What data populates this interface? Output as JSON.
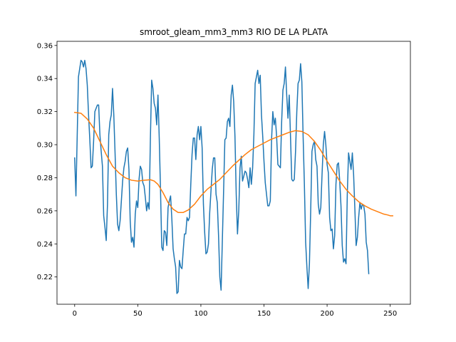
{
  "chart_data": {
    "type": "line",
    "title": "smroot_gleam_mm3_mm3 RIO DE LA PLATA",
    "xlabel": "",
    "ylabel": "",
    "xlim": [
      -14,
      266
    ],
    "ylim": [
      0.2035,
      0.3625
    ],
    "xticks": [
      0,
      50,
      100,
      150,
      200,
      250
    ],
    "xtick_labels": [
      "0",
      "50",
      "100",
      "150",
      "200",
      "250"
    ],
    "yticks": [
      0.22,
      0.24,
      0.26,
      0.28,
      0.3,
      0.32,
      0.34,
      0.36
    ],
    "ytick_labels": [
      "0.22",
      "0.24",
      "0.26",
      "0.28",
      "0.30",
      "0.32",
      "0.34",
      "0.36"
    ],
    "grid": false,
    "series": [
      {
        "color": "#1f77b4",
        "points": [
          [
            0,
            0.292
          ],
          [
            1,
            0.269
          ],
          [
            2,
            0.305
          ],
          [
            3,
            0.341
          ],
          [
            4,
            0.346
          ],
          [
            5,
            0.351
          ],
          [
            6,
            0.35
          ],
          [
            7,
            0.347
          ],
          [
            8,
            0.351
          ],
          [
            9,
            0.346
          ],
          [
            10,
            0.336
          ],
          [
            11,
            0.318
          ],
          [
            12,
            0.303
          ],
          [
            13,
            0.286
          ],
          [
            14,
            0.287
          ],
          [
            15,
            0.302
          ],
          [
            16,
            0.32
          ],
          [
            17,
            0.322
          ],
          [
            18,
            0.324
          ],
          [
            19,
            0.324
          ],
          [
            20,
            0.306
          ],
          [
            21,
            0.296
          ],
          [
            22,
            0.287
          ],
          [
            23,
            0.257
          ],
          [
            24,
            0.25
          ],
          [
            25,
            0.242
          ],
          [
            26,
            0.264
          ],
          [
            27,
            0.306
          ],
          [
            28,
            0.314
          ],
          [
            29,
            0.318
          ],
          [
            30,
            0.334
          ],
          [
            31,
            0.318
          ],
          [
            32,
            0.295
          ],
          [
            33,
            0.27
          ],
          [
            34,
            0.252
          ],
          [
            35,
            0.248
          ],
          [
            36,
            0.254
          ],
          [
            37,
            0.266
          ],
          [
            38,
            0.278
          ],
          [
            39,
            0.286
          ],
          [
            40,
            0.29
          ],
          [
            41,
            0.296
          ],
          [
            42,
            0.298
          ],
          [
            43,
            0.285
          ],
          [
            44,
            0.254
          ],
          [
            45,
            0.241
          ],
          [
            46,
            0.244
          ],
          [
            47,
            0.238
          ],
          [
            48,
            0.258
          ],
          [
            49,
            0.266
          ],
          [
            50,
            0.262
          ],
          [
            51,
            0.279
          ],
          [
            52,
            0.287
          ],
          [
            53,
            0.285
          ],
          [
            54,
            0.277
          ],
          [
            55,
            0.275
          ],
          [
            56,
            0.268
          ],
          [
            57,
            0.26
          ],
          [
            58,
            0.265
          ],
          [
            59,
            0.261
          ],
          [
            60,
            0.304
          ],
          [
            61,
            0.339
          ],
          [
            62,
            0.334
          ],
          [
            63,
            0.325
          ],
          [
            64,
            0.322
          ],
          [
            65,
            0.312
          ],
          [
            66,
            0.33
          ],
          [
            67,
            0.304
          ],
          [
            68,
            0.273
          ],
          [
            69,
            0.238
          ],
          [
            70,
            0.236
          ],
          [
            71,
            0.248
          ],
          [
            72,
            0.247
          ],
          [
            73,
            0.239
          ],
          [
            74,
            0.262
          ],
          [
            75,
            0.266
          ],
          [
            76,
            0.269
          ],
          [
            77,
            0.255
          ],
          [
            78,
            0.237
          ],
          [
            79,
            0.231
          ],
          [
            80,
            0.226
          ],
          [
            81,
            0.21
          ],
          [
            82,
            0.211
          ],
          [
            83,
            0.23
          ],
          [
            84,
            0.226
          ],
          [
            85,
            0.225
          ],
          [
            86,
            0.236
          ],
          [
            87,
            0.246
          ],
          [
            88,
            0.246
          ],
          [
            89,
            0.256
          ],
          [
            90,
            0.254
          ],
          [
            91,
            0.256
          ],
          [
            92,
            0.276
          ],
          [
            93,
            0.294
          ],
          [
            94,
            0.304
          ],
          [
            95,
            0.304
          ],
          [
            96,
            0.291
          ],
          [
            97,
            0.306
          ],
          [
            98,
            0.311
          ],
          [
            99,
            0.303
          ],
          [
            100,
            0.311
          ],
          [
            101,
            0.298
          ],
          [
            102,
            0.264
          ],
          [
            103,
            0.247
          ],
          [
            104,
            0.234
          ],
          [
            105,
            0.235
          ],
          [
            106,
            0.24
          ],
          [
            107,
            0.259
          ],
          [
            108,
            0.272
          ],
          [
            109,
            0.285
          ],
          [
            110,
            0.292
          ],
          [
            111,
            0.292
          ],
          [
            112,
            0.27
          ],
          [
            113,
            0.265
          ],
          [
            114,
            0.245
          ],
          [
            115,
            0.22
          ],
          [
            116,
            0.212
          ],
          [
            117,
            0.242
          ],
          [
            118,
            0.272
          ],
          [
            119,
            0.303
          ],
          [
            120,
            0.304
          ],
          [
            121,
            0.314
          ],
          [
            122,
            0.316
          ],
          [
            123,
            0.311
          ],
          [
            124,
            0.33
          ],
          [
            125,
            0.336
          ],
          [
            126,
            0.326
          ],
          [
            127,
            0.305
          ],
          [
            128,
            0.27
          ],
          [
            129,
            0.246
          ],
          [
            130,
            0.26
          ],
          [
            131,
            0.286
          ],
          [
            132,
            0.293
          ],
          [
            133,
            0.278
          ],
          [
            134,
            0.281
          ],
          [
            135,
            0.284
          ],
          [
            136,
            0.283
          ],
          [
            137,
            0.279
          ],
          [
            138,
            0.274
          ],
          [
            139,
            0.286
          ],
          [
            140,
            0.276
          ],
          [
            141,
            0.286
          ],
          [
            142,
            0.306
          ],
          [
            143,
            0.337
          ],
          [
            144,
            0.341
          ],
          [
            145,
            0.345
          ],
          [
            146,
            0.337
          ],
          [
            147,
            0.342
          ],
          [
            148,
            0.318
          ],
          [
            149,
            0.305
          ],
          [
            150,
            0.29
          ],
          [
            151,
            0.277
          ],
          [
            152,
            0.27
          ],
          [
            153,
            0.263
          ],
          [
            154,
            0.263
          ],
          [
            155,
            0.266
          ],
          [
            156,
            0.303
          ],
          [
            157,
            0.32
          ],
          [
            158,
            0.312
          ],
          [
            159,
            0.316
          ],
          [
            160,
            0.305
          ],
          [
            161,
            0.288
          ],
          [
            162,
            0.287
          ],
          [
            163,
            0.286
          ],
          [
            164,
            0.314
          ],
          [
            165,
            0.333
          ],
          [
            166,
            0.337
          ],
          [
            167,
            0.347
          ],
          [
            168,
            0.33
          ],
          [
            169,
            0.316
          ],
          [
            170,
            0.33
          ],
          [
            171,
            0.305
          ],
          [
            172,
            0.279
          ],
          [
            173,
            0.278
          ],
          [
            174,
            0.279
          ],
          [
            175,
            0.296
          ],
          [
            176,
            0.32
          ],
          [
            177,
            0.337
          ],
          [
            178,
            0.339
          ],
          [
            179,
            0.349
          ],
          [
            180,
            0.338
          ],
          [
            181,
            0.305
          ],
          [
            182,
            0.276
          ],
          [
            183,
            0.241
          ],
          [
            184,
            0.226
          ],
          [
            185,
            0.213
          ],
          [
            186,
            0.228
          ],
          [
            187,
            0.26
          ],
          [
            188,
            0.296
          ],
          [
            189,
            0.3
          ],
          [
            190,
            0.302
          ],
          [
            191,
            0.291
          ],
          [
            192,
            0.287
          ],
          [
            193,
            0.264
          ],
          [
            194,
            0.258
          ],
          [
            195,
            0.262
          ],
          [
            196,
            0.282
          ],
          [
            197,
            0.3
          ],
          [
            198,
            0.308
          ],
          [
            199,
            0.3
          ],
          [
            200,
            0.288
          ],
          [
            201,
            0.283
          ],
          [
            202,
            0.256
          ],
          [
            203,
            0.248
          ],
          [
            204,
            0.249
          ],
          [
            205,
            0.237
          ],
          [
            206,
            0.245
          ],
          [
            207,
            0.276
          ],
          [
            208,
            0.288
          ],
          [
            209,
            0.289
          ],
          [
            210,
            0.278
          ],
          [
            211,
            0.263
          ],
          [
            212,
            0.239
          ],
          [
            213,
            0.229
          ],
          [
            214,
            0.231
          ],
          [
            215,
            0.228
          ],
          [
            216,
            0.27
          ],
          [
            217,
            0.295
          ],
          [
            218,
            0.29
          ],
          [
            219,
            0.285
          ],
          [
            220,
            0.295
          ],
          [
            221,
            0.282
          ],
          [
            222,
            0.261
          ],
          [
            223,
            0.239
          ],
          [
            224,
            0.244
          ],
          [
            225,
            0.256
          ],
          [
            226,
            0.265
          ],
          [
            227,
            0.261
          ],
          [
            228,
            0.264
          ],
          [
            229,
            0.263
          ],
          [
            230,
            0.258
          ],
          [
            231,
            0.241
          ],
          [
            232,
            0.236
          ],
          [
            233,
            0.222
          ]
        ]
      },
      {
        "color": "#ff7f0e",
        "points": [
          [
            0,
            0.3195
          ],
          [
            5,
            0.319
          ],
          [
            10,
            0.3155
          ],
          [
            15,
            0.31
          ],
          [
            20,
            0.302
          ],
          [
            25,
            0.294
          ],
          [
            30,
            0.287
          ],
          [
            35,
            0.283
          ],
          [
            40,
            0.28
          ],
          [
            45,
            0.2785
          ],
          [
            50,
            0.278
          ],
          [
            55,
            0.2785
          ],
          [
            60,
            0.2788
          ],
          [
            63,
            0.278
          ],
          [
            66,
            0.276
          ],
          [
            70,
            0.271
          ],
          [
            74,
            0.265
          ],
          [
            78,
            0.261
          ],
          [
            82,
            0.259
          ],
          [
            86,
            0.259
          ],
          [
            90,
            0.2605
          ],
          [
            95,
            0.264
          ],
          [
            100,
            0.269
          ],
          [
            105,
            0.273
          ],
          [
            110,
            0.276
          ],
          [
            115,
            0.279
          ],
          [
            120,
            0.283
          ],
          [
            125,
            0.287
          ],
          [
            130,
            0.2905
          ],
          [
            135,
            0.294
          ],
          [
            140,
            0.297
          ],
          [
            145,
            0.299
          ],
          [
            150,
            0.301
          ],
          [
            155,
            0.303
          ],
          [
            160,
            0.3045
          ],
          [
            165,
            0.306
          ],
          [
            170,
            0.3075
          ],
          [
            175,
            0.3085
          ],
          [
            180,
            0.308
          ],
          [
            185,
            0.306
          ],
          [
            190,
            0.302
          ],
          [
            195,
            0.2965
          ],
          [
            200,
            0.29
          ],
          [
            205,
            0.284
          ],
          [
            210,
            0.278
          ],
          [
            215,
            0.273
          ],
          [
            220,
            0.269
          ],
          [
            225,
            0.2655
          ],
          [
            230,
            0.263
          ],
          [
            235,
            0.261
          ],
          [
            240,
            0.2595
          ],
          [
            245,
            0.258
          ],
          [
            248,
            0.2575
          ],
          [
            250,
            0.257
          ],
          [
            252,
            0.257
          ]
        ]
      }
    ]
  }
}
